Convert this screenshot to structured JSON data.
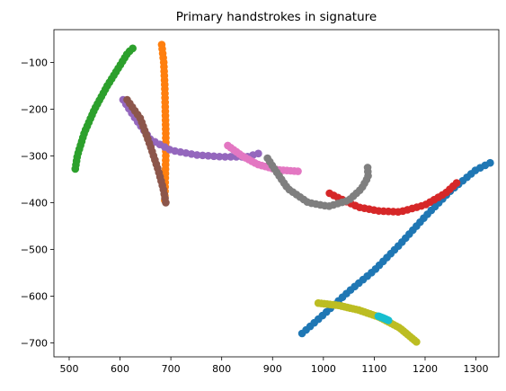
{
  "chart_data": {
    "type": "scatter",
    "title": "Primary handstrokes in signature",
    "xlabel": "",
    "ylabel": "",
    "xlim": [
      470,
      1345
    ],
    "ylim": [
      -730,
      -30
    ],
    "xticks": [
      500,
      600,
      700,
      800,
      900,
      1000,
      1100,
      1200,
      1300
    ],
    "yticks": [
      -100,
      -200,
      -300,
      -400,
      -500,
      -600,
      -700
    ],
    "grid": false,
    "series": [
      {
        "color": "#1f77b4",
        "anchors": [
          [
            958,
            -680
          ],
          [
            1000,
            -640
          ],
          [
            1050,
            -590
          ],
          [
            1100,
            -545
          ],
          [
            1150,
            -490
          ],
          [
            1200,
            -430
          ],
          [
            1250,
            -375
          ],
          [
            1300,
            -330
          ],
          [
            1328,
            -315
          ]
        ],
        "n": 48
      },
      {
        "color": "#ff7f0e",
        "anchors": [
          [
            682,
            -62
          ],
          [
            686,
            -100
          ],
          [
            688,
            -150
          ],
          [
            689,
            -200
          ],
          [
            690,
            -250
          ],
          [
            690,
            -300
          ],
          [
            689,
            -350
          ],
          [
            688,
            -395
          ]
        ],
        "n": 36
      },
      {
        "color": "#2ca02c",
        "anchors": [
          [
            512,
            -328
          ],
          [
            516,
            -300
          ],
          [
            530,
            -250
          ],
          [
            550,
            -200
          ],
          [
            575,
            -150
          ],
          [
            598,
            -110
          ],
          [
            615,
            -80
          ],
          [
            625,
            -70
          ]
        ],
        "n": 34
      },
      {
        "color": "#d62728",
        "anchors": [
          [
            1012,
            -380
          ],
          [
            1030,
            -390
          ],
          [
            1070,
            -410
          ],
          [
            1110,
            -418
          ],
          [
            1150,
            -420
          ],
          [
            1200,
            -405
          ],
          [
            1240,
            -380
          ],
          [
            1262,
            -358
          ]
        ],
        "n": 30
      },
      {
        "color": "#9467bd",
        "anchors": [
          [
            606,
            -180
          ],
          [
            630,
            -220
          ],
          [
            660,
            -265
          ],
          [
            700,
            -288
          ],
          [
            750,
            -298
          ],
          [
            800,
            -302
          ],
          [
            850,
            -302
          ],
          [
            872,
            -295
          ]
        ],
        "n": 30
      },
      {
        "color": "#8c564b",
        "anchors": [
          [
            614,
            -180
          ],
          [
            640,
            -220
          ],
          [
            660,
            -280
          ],
          [
            675,
            -330
          ],
          [
            685,
            -370
          ],
          [
            690,
            -400
          ]
        ],
        "n": 26
      },
      {
        "color": "#e377c2",
        "anchors": [
          [
            812,
            -278
          ],
          [
            840,
            -300
          ],
          [
            870,
            -318
          ],
          [
            910,
            -330
          ],
          [
            950,
            -333
          ]
        ],
        "n": 22
      },
      {
        "color": "#7f7f7f",
        "anchors": [
          [
            890,
            -305
          ],
          [
            905,
            -330
          ],
          [
            930,
            -370
          ],
          [
            970,
            -400
          ],
          [
            1010,
            -408
          ],
          [
            1050,
            -395
          ],
          [
            1075,
            -370
          ],
          [
            1088,
            -345
          ],
          [
            1087,
            -325
          ]
        ],
        "n": 34
      },
      {
        "color": "#bcbd22",
        "anchors": [
          [
            990,
            -615
          ],
          [
            1030,
            -620
          ],
          [
            1070,
            -630
          ],
          [
            1110,
            -645
          ],
          [
            1150,
            -668
          ],
          [
            1183,
            -698
          ]
        ],
        "n": 38
      },
      {
        "color": "#17becf",
        "anchors": [
          [
            1108,
            -643
          ],
          [
            1118,
            -647
          ],
          [
            1128,
            -652
          ]
        ],
        "n": 10
      }
    ]
  }
}
